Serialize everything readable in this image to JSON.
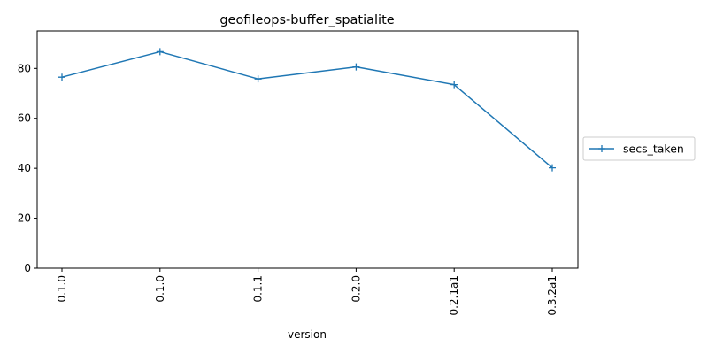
{
  "chart_data": {
    "type": "line",
    "title": "geofileops-buffer_spatialite",
    "xlabel": "version",
    "ylabel": "",
    "categories": [
      "0.1.0",
      "0.1.0",
      "0.1.1",
      "0.2.0",
      "0.2.1a1",
      "0.3.2a1"
    ],
    "series": [
      {
        "name": "secs_taken",
        "values": [
          76.5,
          86.7,
          75.8,
          80.6,
          73.5,
          40.2
        ],
        "color": "#1f77b4",
        "marker": "plus"
      }
    ],
    "ylim": [
      0,
      95
    ],
    "yticks": [
      0,
      20,
      40,
      60,
      80
    ],
    "grid": false,
    "legend": "outside-right"
  }
}
